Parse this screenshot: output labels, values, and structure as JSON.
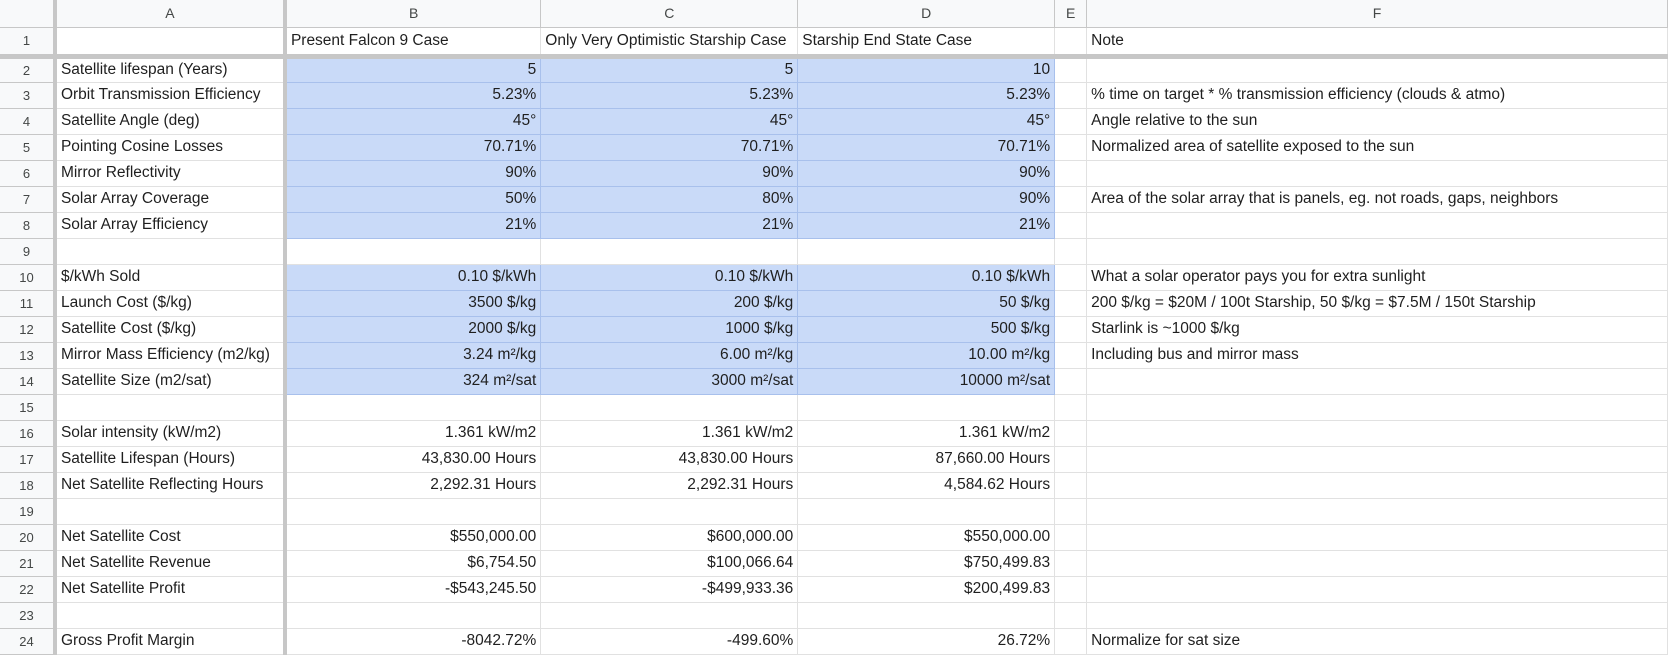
{
  "sheet": {
    "columns": [
      "A",
      "B",
      "C",
      "D",
      "E",
      "F"
    ],
    "rows": [
      {
        "num": "1",
        "label": "",
        "b": "Present Falcon 9 Case",
        "c": "Only Very Optimistic Starship Case",
        "d": "Starship End State Case",
        "e": "",
        "f": "Note"
      },
      {
        "num": "2",
        "label": "Satellite lifespan (Years)",
        "b": "5",
        "c": "5",
        "d": "10",
        "e": "",
        "f": ""
      },
      {
        "num": "3",
        "label": "Orbit Transmission Efficiency",
        "b": "5.23%",
        "c": "5.23%",
        "d": "5.23%",
        "e": "",
        "f": "% time on target * % transmission efficiency (clouds & atmo)"
      },
      {
        "num": "4",
        "label": "Satellite Angle (deg)",
        "b": "45°",
        "c": "45°",
        "d": "45°",
        "e": "",
        "f": "Angle relative to the sun"
      },
      {
        "num": "5",
        "label": "Pointing Cosine Losses",
        "b": "70.71%",
        "c": "70.71%",
        "d": "70.71%",
        "e": "",
        "f": "Normalized area of satellite exposed to the sun"
      },
      {
        "num": "6",
        "label": "Mirror Reflectivity",
        "b": "90%",
        "c": "90%",
        "d": "90%",
        "e": "",
        "f": ""
      },
      {
        "num": "7",
        "label": "Solar Array Coverage",
        "b": "50%",
        "c": "80%",
        "d": "90%",
        "e": "",
        "f": "Area of the solar array that is panels, eg. not roads, gaps, neighbors"
      },
      {
        "num": "8",
        "label": "Solar Array Efficiency",
        "b": "21%",
        "c": "21%",
        "d": "21%",
        "e": "",
        "f": ""
      },
      {
        "num": "9",
        "label": "",
        "b": "",
        "c": "",
        "d": "",
        "e": "",
        "f": ""
      },
      {
        "num": "10",
        "label": "$/kWh Sold",
        "b": "0.10 $/kWh",
        "c": "0.10 $/kWh",
        "d": "0.10 $/kWh",
        "e": "",
        "f": "What a solar operator pays you for extra sunlight"
      },
      {
        "num": "11",
        "label": "Launch Cost ($/kg)",
        "b": "3500 $/kg",
        "c": "200 $/kg",
        "d": "50 $/kg",
        "e": "",
        "f": "200 $/kg = $20M / 100t Starship, 50 $/kg = $7.5M / 150t Starship"
      },
      {
        "num": "12",
        "label": "Satellite Cost ($/kg)",
        "b": "2000 $/kg",
        "c": "1000 $/kg",
        "d": "500 $/kg",
        "e": "",
        "f": "Starlink is ~1000 $/kg"
      },
      {
        "num": "13",
        "label": "Mirror Mass Efficiency (m2/kg)",
        "b": "3.24 m²/kg",
        "c": "6.00 m²/kg",
        "d": "10.00 m²/kg",
        "e": "",
        "f": "Including bus and mirror mass"
      },
      {
        "num": "14",
        "label": "Satellite Size (m2/sat)",
        "b": "324 m²/sat",
        "c": "3000 m²/sat",
        "d": "10000 m²/sat",
        "e": "",
        "f": ""
      },
      {
        "num": "15",
        "label": "",
        "b": "",
        "c": "",
        "d": "",
        "e": "",
        "f": ""
      },
      {
        "num": "16",
        "label": "Solar intensity (kW/m2)",
        "b": "1.361 kW/m2",
        "c": "1.361 kW/m2",
        "d": "1.361 kW/m2",
        "e": "",
        "f": ""
      },
      {
        "num": "17",
        "label": "Satellite Lifespan (Hours)",
        "b": "43,830.00 Hours",
        "c": "43,830.00 Hours",
        "d": "87,660.00 Hours",
        "e": "",
        "f": ""
      },
      {
        "num": "18",
        "label": "Net Satellite Reflecting Hours",
        "b": "2,292.31 Hours",
        "c": "2,292.31 Hours",
        "d": "4,584.62 Hours",
        "e": "",
        "f": ""
      },
      {
        "num": "19",
        "label": "",
        "b": "",
        "c": "",
        "d": "",
        "e": "",
        "f": ""
      },
      {
        "num": "20",
        "label": "Net Satellite Cost",
        "b": "$550,000.00",
        "c": "$600,000.00",
        "d": "$550,000.00",
        "e": "",
        "f": ""
      },
      {
        "num": "21",
        "label": "Net Satellite Revenue",
        "b": "$6,754.50",
        "c": "$100,066.64",
        "d": "$750,499.83",
        "e": "",
        "f": ""
      },
      {
        "num": "22",
        "label": "Net Satellite Profit",
        "b": "-$543,245.50",
        "c": "-$499,933.36",
        "d": "$200,499.83",
        "e": "",
        "f": ""
      },
      {
        "num": "23",
        "label": "",
        "b": "",
        "c": "",
        "d": "",
        "e": "",
        "f": ""
      },
      {
        "num": "24",
        "label": "Gross Profit Margin",
        "b": "-8042.72%",
        "c": "-499.60%",
        "d": "26.72%",
        "e": "",
        "f": "Normalize for sat size"
      }
    ]
  },
  "colors": {
    "input_fill": "#c9daf8",
    "header_fill": "#f8f9fa",
    "gridline": "#e1e1e1"
  }
}
